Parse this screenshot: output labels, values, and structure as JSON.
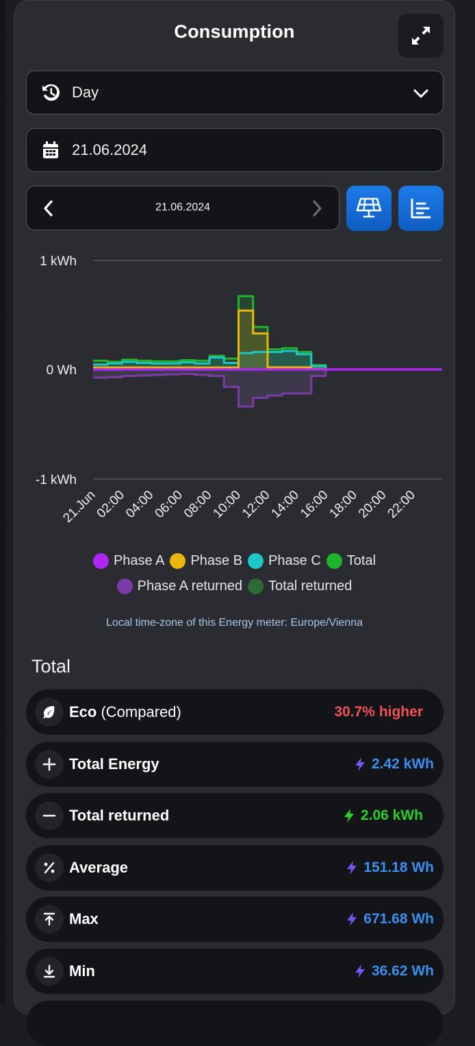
{
  "title": "Consumption",
  "period_select": {
    "value": "Day"
  },
  "date_field": {
    "value": "21.06.2024"
  },
  "date_nav": {
    "label": "21.06.2024"
  },
  "chart_data": {
    "type": "line",
    "step": true,
    "y_ticks": [
      "1 kWh",
      "0 Wh",
      "-1 kWh"
    ],
    "ylim": [
      -1000,
      1000
    ],
    "x_ticks": [
      "21.Jun",
      "02:00",
      "04:00",
      "06:00",
      "08:00",
      "10:00",
      "12:00",
      "14:00",
      "16:00",
      "18:00",
      "20:00",
      "22:00"
    ],
    "x": [
      "00:00",
      "01:00",
      "02:00",
      "03:00",
      "04:00",
      "05:00",
      "06:00",
      "07:00",
      "08:00",
      "09:00",
      "10:00",
      "11:00",
      "12:00",
      "13:00",
      "14:00",
      "15:00",
      "16:00",
      "17:00",
      "18:00",
      "19:00",
      "20:00",
      "21:00",
      "22:00",
      "23:00"
    ],
    "series": [
      {
        "name": "Phase A",
        "color": "#b026f3",
        "values": [
          0,
          0,
          0,
          0,
          0,
          0,
          0,
          0,
          0,
          0,
          0,
          0,
          0,
          0,
          0,
          0,
          0,
          0,
          0,
          0,
          0,
          0,
          0,
          0
        ]
      },
      {
        "name": "Phase B",
        "color": "#e9b60c",
        "values": [
          18,
          18,
          18,
          18,
          18,
          18,
          18,
          18,
          18,
          18,
          540,
          330,
          20,
          20,
          20,
          5,
          0,
          0,
          0,
          0,
          0,
          0,
          0,
          0
        ]
      },
      {
        "name": "Phase C",
        "color": "#1dc7c6",
        "values": [
          45,
          55,
          70,
          60,
          55,
          55,
          65,
          55,
          110,
          60,
          150,
          160,
          160,
          170,
          140,
          30,
          0,
          0,
          0,
          0,
          0,
          0,
          0,
          0
        ]
      },
      {
        "name": "Total",
        "color": "#1fb42b",
        "values": [
          80,
          70,
          90,
          80,
          75,
          75,
          85,
          80,
          125,
          100,
          672,
          390,
          185,
          195,
          160,
          40,
          0,
          0,
          0,
          0,
          0,
          0,
          0,
          0
        ]
      },
      {
        "name": "Phase A returned",
        "color": "#7c3aa8",
        "values": [
          -75,
          -70,
          -60,
          -55,
          -50,
          -45,
          -40,
          -50,
          -60,
          -160,
          -340,
          -260,
          -240,
          -220,
          -220,
          -60,
          0,
          0,
          0,
          0,
          0,
          0,
          0,
          0
        ]
      },
      {
        "name": "Total returned",
        "color": "#2c6b33",
        "values": [
          -75,
          -70,
          -60,
          -55,
          -50,
          -45,
          -40,
          -50,
          -60,
          -160,
          -340,
          -260,
          -240,
          -220,
          -220,
          -60,
          0,
          0,
          0,
          0,
          0,
          0,
          0,
          0
        ]
      }
    ],
    "legend_rows": [
      [
        "Phase A",
        "Phase B",
        "Phase C",
        "Total"
      ],
      [
        "Phase A returned",
        "Total returned"
      ]
    ]
  },
  "timezone_note": "Local time-zone of this Energy meter: Europe/Vienna",
  "section_title": "Total",
  "stats": [
    {
      "icon": "leaf-icon",
      "label": "Eco",
      "sub": " (Compared)",
      "value": "30.7% higher",
      "color": "#f0515a",
      "bolt": false
    },
    {
      "icon": "plus-icon",
      "label": "Total Energy",
      "sub": "",
      "value": "2.42 kWh",
      "color": "#3a8ff0",
      "bolt": true,
      "bolt_color": "#7a55f5"
    },
    {
      "icon": "minus-icon",
      "label": "Total returned",
      "sub": "",
      "value": "2.06 kWh",
      "color": "#2bd12b",
      "bolt": true,
      "bolt_color": "#2bd12b"
    },
    {
      "icon": "percent-icon",
      "label": "Average",
      "sub": "",
      "value": "151.18 Wh",
      "color": "#3a8ff0",
      "bolt": true,
      "bolt_color": "#7a55f5"
    },
    {
      "icon": "arrow-up-bar-icon",
      "label": "Max",
      "sub": "",
      "value": "671.68 Wh",
      "color": "#3a8ff0",
      "bolt": true,
      "bolt_color": "#7a55f5"
    },
    {
      "icon": "arrow-down-bar-icon",
      "label": "Min",
      "sub": "",
      "value": "36.62 Wh",
      "color": "#3a8ff0",
      "bolt": true,
      "bolt_color": "#7a55f5"
    }
  ]
}
